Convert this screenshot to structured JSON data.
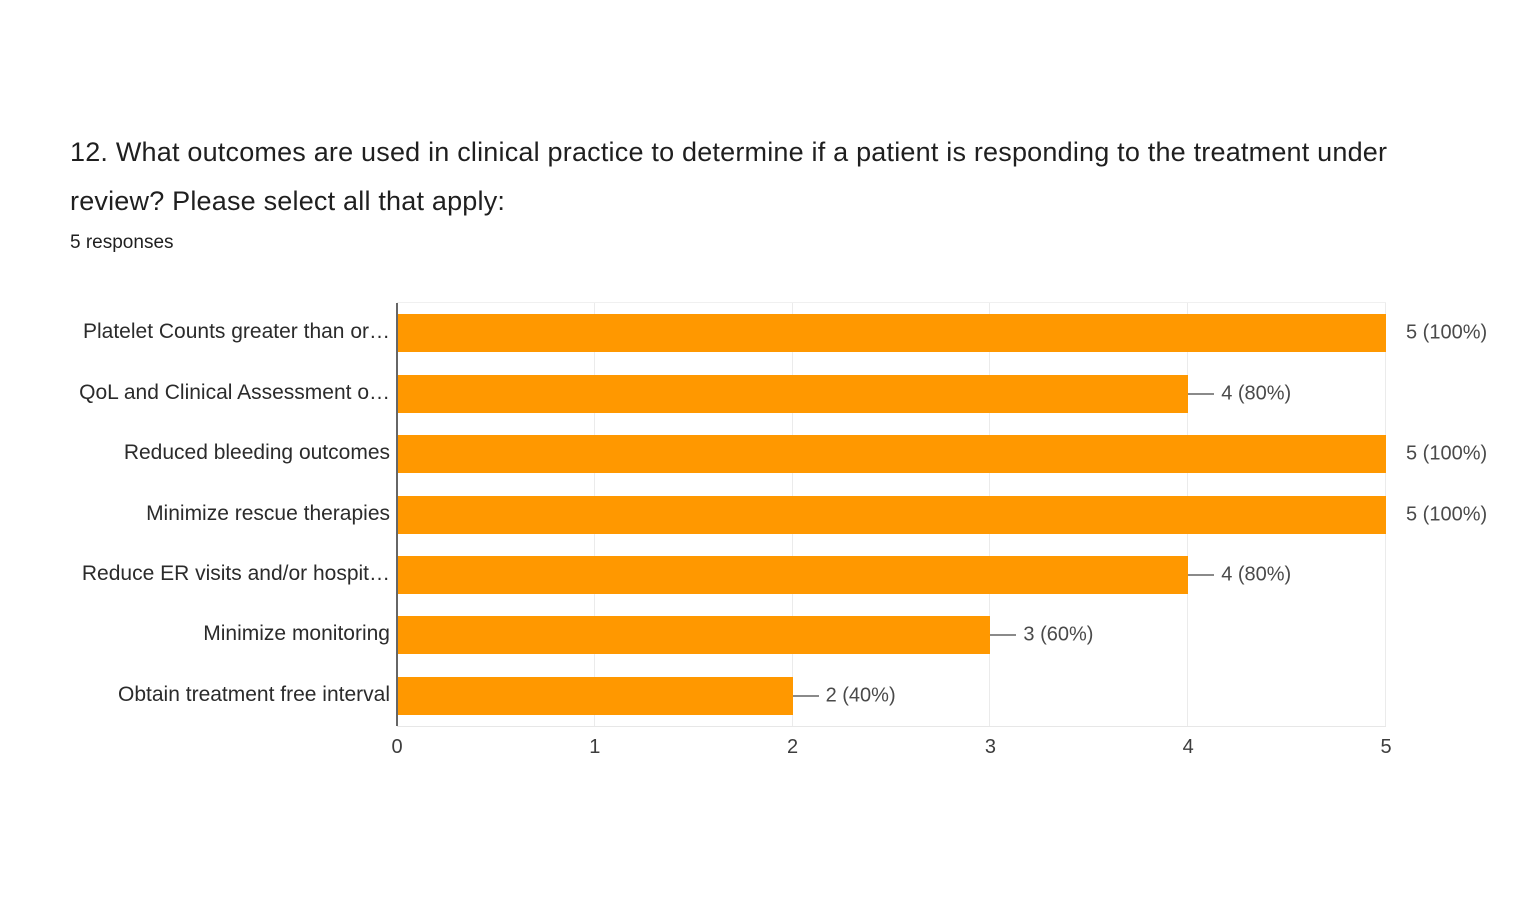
{
  "question": {
    "title": "12. What outcomes are used in clinical practice to determine if a patient is responding to the treatment under review? Please select all that apply:",
    "responses_label": "5 responses"
  },
  "chart_data": {
    "type": "bar",
    "orientation": "horizontal",
    "title": "12. What outcomes are used in clinical practice to determine if a patient is responding to the treatment under review? Please select all that apply:",
    "subtitle": "5 responses",
    "categories": [
      "Platelet Counts greater than or…",
      "QoL and Clinical Assessment o…",
      "Reduced bleeding outcomes",
      "Minimize rescue therapies",
      "Reduce ER visits and/or hospit…",
      "Minimize monitoring",
      "Obtain treatment free interval"
    ],
    "values": [
      5,
      4,
      5,
      5,
      4,
      3,
      2
    ],
    "value_labels": [
      "5 (100%)",
      "4 (80%)",
      "5 (100%)",
      "5 (100%)",
      "4 (80%)",
      "3 (60%)",
      "2 (40%)"
    ],
    "x_ticks": [
      "0",
      "1",
      "2",
      "3",
      "4",
      "5"
    ],
    "xlim": [
      0,
      5
    ],
    "grid": true,
    "legend": "none",
    "bar_color": "#FF9800",
    "axis_line_color": "#666666",
    "gridline_color": "#ebebeb",
    "label_color": "#2b2b2b",
    "value_label_color": "#4a4a4a"
  }
}
